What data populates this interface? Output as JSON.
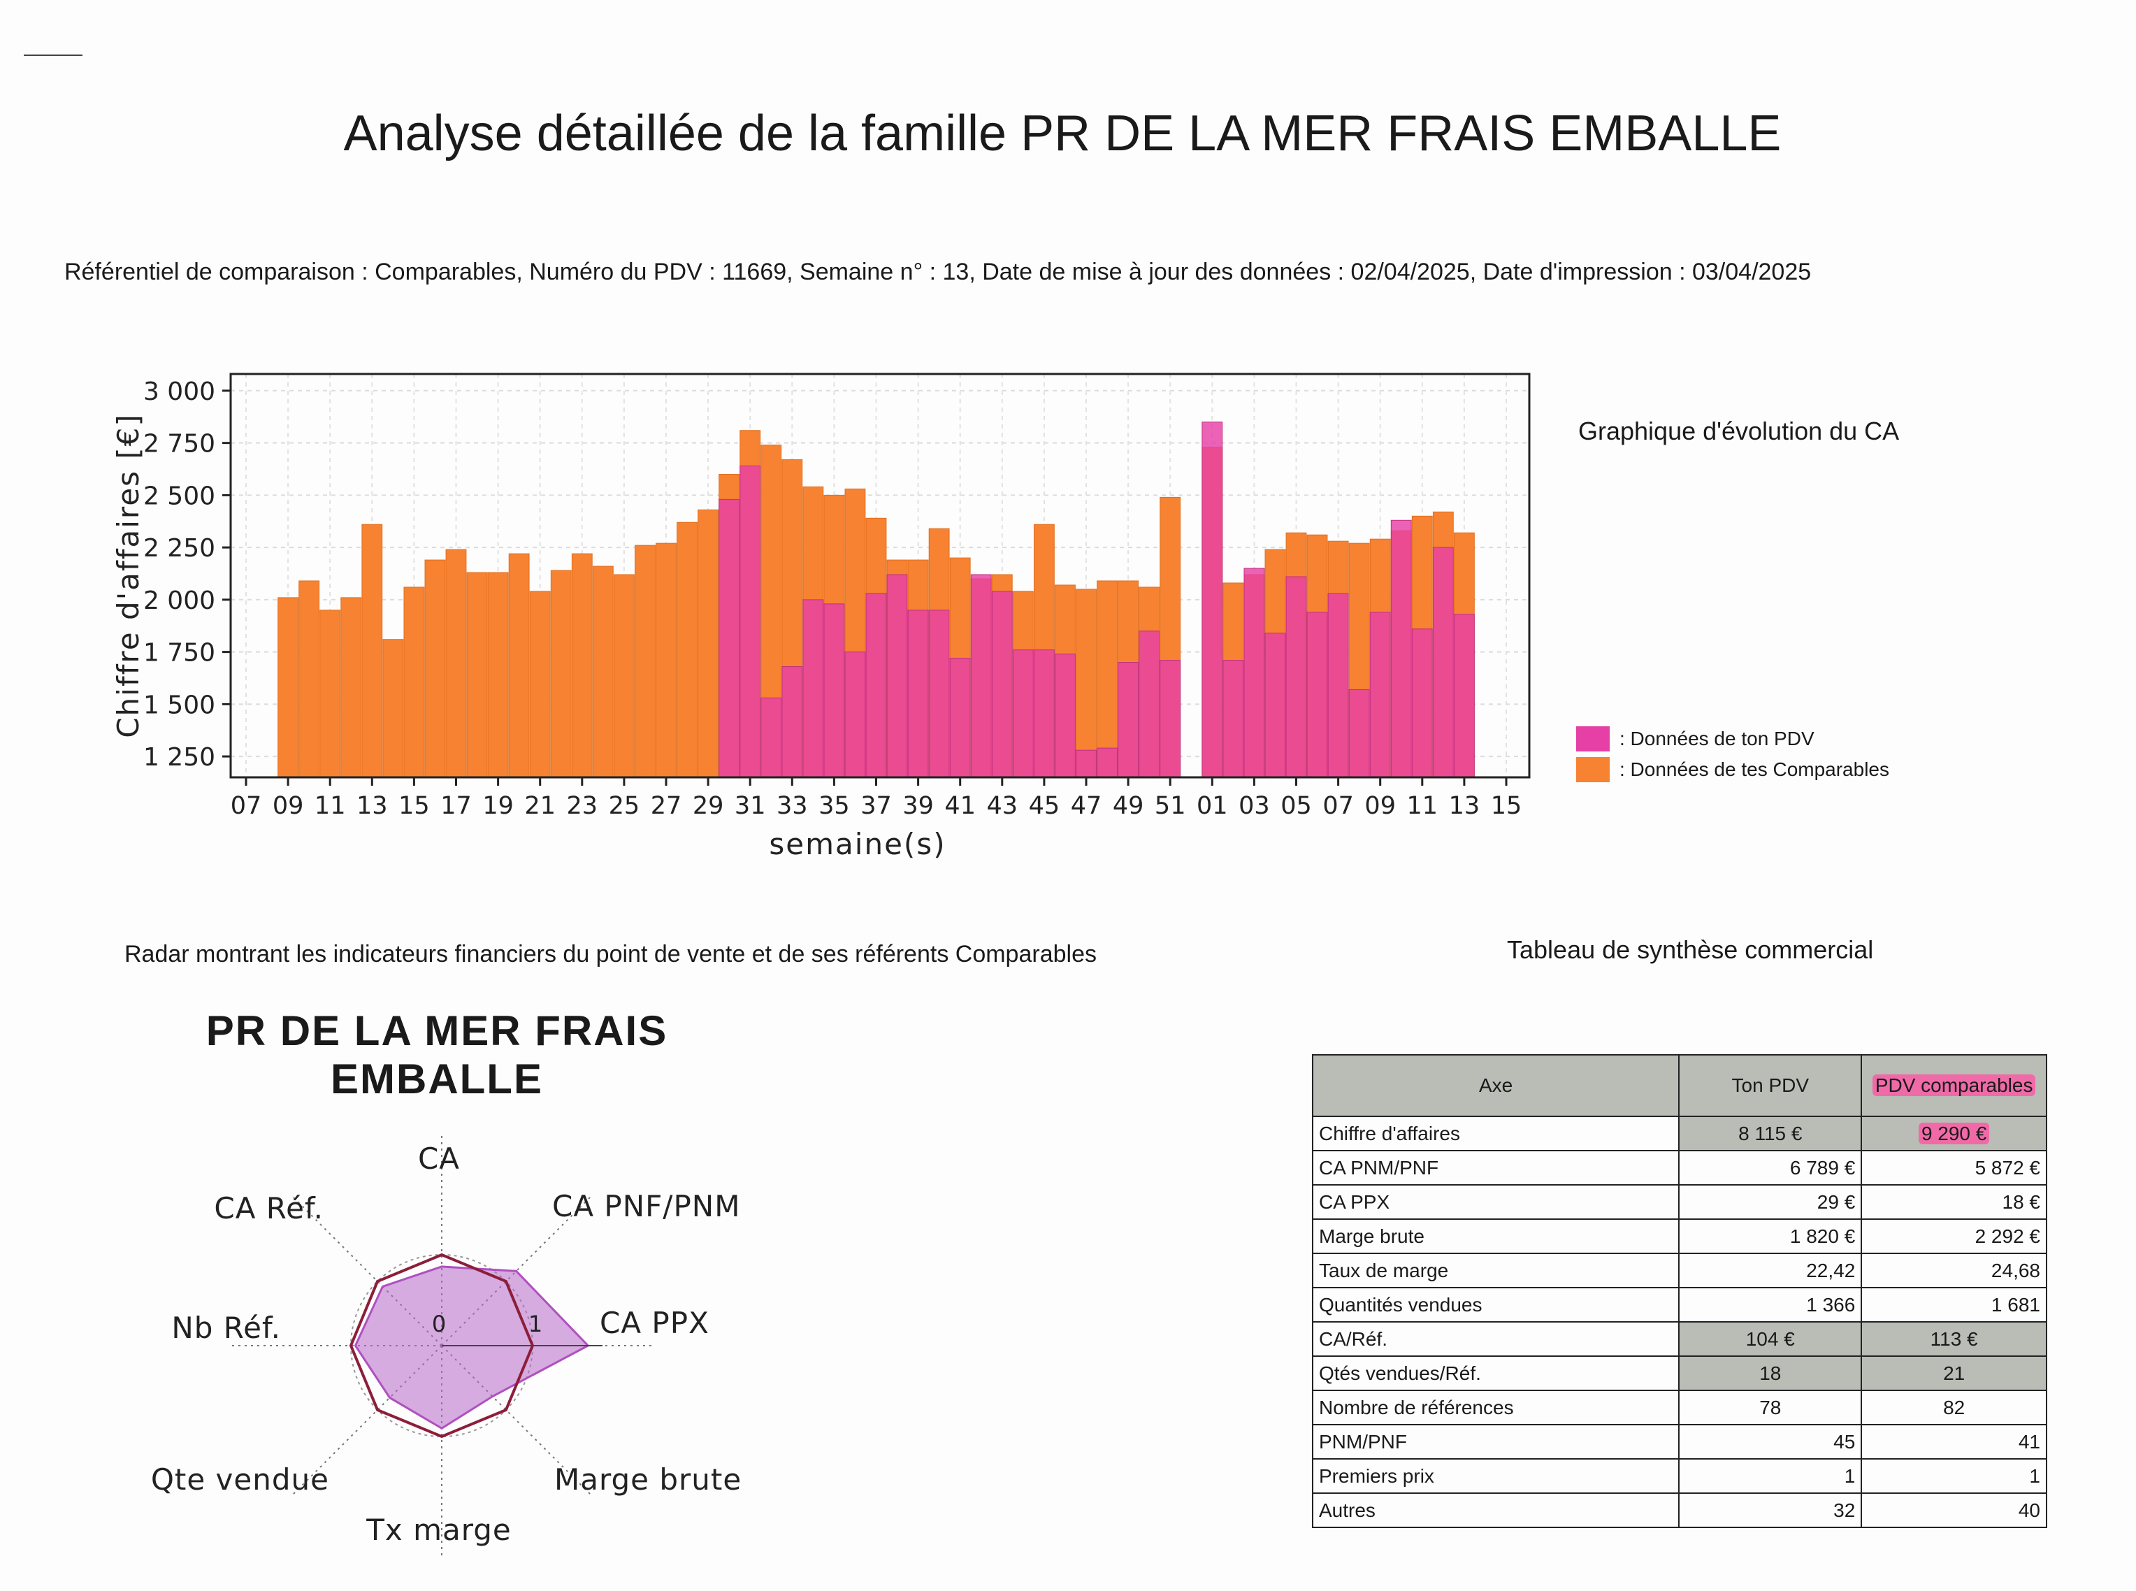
{
  "title": "Analyse détaillée de la famille PR DE LA MER FRAIS EMBALLE",
  "meta": "Référentiel de comparaison : Comparables, Numéro du PDV : 11669, Semaine n° : 13, Date de mise à jour des données : 02/04/2025, Date d'impression : 03/04/2025",
  "chart_caption": "Graphique d'évolution du CA",
  "radar_caption": "Radar montrant les indicateurs financiers du point de vente et de ses référents Comparables",
  "table_caption": "Tableau de synthèse commercial",
  "radar_heading_line1": "PR DE LA MER FRAIS",
  "radar_heading_line2": "EMBALLE",
  "colors": {
    "pdv": "#e63fa6",
    "comparables": "#f78232",
    "overlap": "#d94a8a",
    "radar_fill": "#b768c6",
    "radar_line": "#8c1e3a",
    "table_header": "#b9bdb6"
  },
  "chart_data": {
    "type": "bar",
    "xlabel": "semaine(s)",
    "ylabel": "Chiffre d'affaires [€]",
    "ylim": [
      1150,
      3080
    ],
    "yticks": [
      1250,
      1500,
      1750,
      2000,
      2250,
      2500,
      2750,
      3000
    ],
    "ytick_labels": [
      "1 250",
      "1 500",
      "1 750",
      "2 000",
      "2 250",
      "2 500",
      "2 750",
      "3 000"
    ],
    "xtick_labels": [
      "07",
      "09",
      "11",
      "13",
      "15",
      "17",
      "19",
      "21",
      "23",
      "25",
      "27",
      "29",
      "31",
      "33",
      "35",
      "37",
      "39",
      "41",
      "43",
      "45",
      "47",
      "49",
      "51",
      "01",
      "03",
      "05",
      "07",
      "09",
      "11",
      "13",
      "15"
    ],
    "legend": {
      "position": "right",
      "entries": [
        ": Données de ton PDV",
        ": Données de tes Comparables"
      ]
    },
    "categories": [
      "09",
      "10",
      "11",
      "12",
      "13",
      "14",
      "15",
      "16",
      "17",
      "18",
      "19",
      "20",
      "21",
      "22",
      "23",
      "24",
      "25",
      "26",
      "27",
      "28",
      "29",
      "30",
      "31",
      "32",
      "33",
      "34",
      "35",
      "36",
      "37",
      "38",
      "39",
      "40",
      "41",
      "42",
      "43",
      "44",
      "45",
      "46",
      "47",
      "48",
      "49",
      "50",
      "51",
      "52",
      "01",
      "02",
      "03",
      "04",
      "05",
      "06",
      "07",
      "08",
      "09",
      "10",
      "11",
      "12",
      "13",
      "14"
    ],
    "series": [
      {
        "name": ": Données de ton PDV",
        "values": [
          null,
          null,
          null,
          null,
          null,
          null,
          null,
          null,
          null,
          null,
          null,
          null,
          null,
          null,
          null,
          null,
          null,
          null,
          null,
          null,
          null,
          2480,
          2640,
          1530,
          1680,
          2000,
          1980,
          1750,
          2030,
          2120,
          1950,
          1950,
          1720,
          2120,
          2040,
          1760,
          1760,
          1740,
          1280,
          1290,
          1700,
          1850,
          1710,
          null,
          2850,
          1710,
          2150,
          1840,
          2110,
          1940,
          2030,
          1570,
          1940,
          2380,
          1860,
          2250,
          1930,
          null
        ]
      },
      {
        "name": ": Données de tes Comparables",
        "values": [
          2010,
          2090,
          1950,
          2010,
          2360,
          1810,
          2060,
          2190,
          2240,
          2130,
          2130,
          2220,
          2040,
          2140,
          2220,
          2160,
          2120,
          2260,
          2270,
          2370,
          2430,
          2600,
          2810,
          2740,
          2670,
          2540,
          2500,
          2530,
          2390,
          2190,
          2190,
          2340,
          2200,
          2100,
          2120,
          2040,
          2360,
          2070,
          2050,
          2090,
          2090,
          2060,
          2490,
          null,
          2730,
          2080,
          2120,
          2240,
          2320,
          2310,
          2280,
          2270,
          2290,
          2330,
          2400,
          2420,
          2320,
          null
        ]
      }
    ]
  },
  "radar_data": {
    "type": "radar",
    "axes": [
      "CA",
      "CA PNF/PNM",
      "CA PPX",
      "Marge brute",
      "Tx marge",
      "Qte vendue",
      "Nb Réf.",
      "CA Réf."
    ],
    "tick_labels": [
      "0",
      "1"
    ],
    "series": [
      {
        "values": [
          0.87,
          1.16,
          1.61,
          0.79,
          0.91,
          0.81,
          0.95,
          0.92
        ]
      },
      {
        "values": [
          1,
          1,
          1,
          1,
          1,
          1,
          1,
          1
        ]
      }
    ]
  },
  "table": {
    "headers": [
      "Axe",
      "Ton PDV",
      "PDV comparables"
    ],
    "rows": [
      {
        "label": "Chiffre d'affaires",
        "pdv": "8 115 €",
        "comp": "9 290 €"
      },
      {
        "label": "CA PNM/PNF",
        "pdv": "6 789 €",
        "comp": "5 872 €"
      },
      {
        "label": "CA PPX",
        "pdv": "29 €",
        "comp": "18 €"
      },
      {
        "label": "Marge brute",
        "pdv": "1 820 €",
        "comp": "2 292 €"
      },
      {
        "label": "Taux de marge",
        "pdv": "22,42",
        "comp": "24,68"
      },
      {
        "label": "Quantités vendues",
        "pdv": "1 366",
        "comp": "1 681"
      },
      {
        "label": "CA/Réf.",
        "pdv": "104 €",
        "comp": "113 €"
      },
      {
        "label": "Qtés vendues/Réf.",
        "pdv": "18",
        "comp": "21"
      },
      {
        "label": "Nombre de références",
        "pdv": "78",
        "comp": "82"
      },
      {
        "label": "PNM/PNF",
        "pdv": "45",
        "comp": "41"
      },
      {
        "label": "Premiers prix",
        "pdv": "1",
        "comp": "1"
      },
      {
        "label": "Autres",
        "pdv": "32",
        "comp": "40"
      }
    ]
  }
}
